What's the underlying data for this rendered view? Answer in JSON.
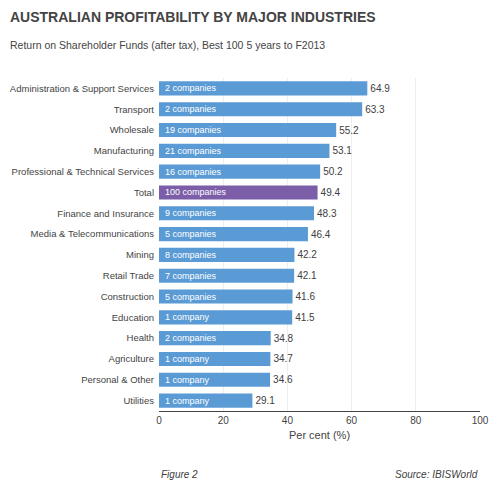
{
  "chart_data": {
    "type": "bar",
    "orientation": "horizontal",
    "title": "AUSTRALIAN PROFITABILITY BY MAJOR INDUSTRIES",
    "subtitle": "Return on Shareholder Funds (after tax), Best 100 5 years to F2013",
    "xlabel": "Per cent (%)",
    "annotations": [
      "Figure 2",
      "Source: IBISWorld"
    ],
    "categories": [
      "Administration & Support Services",
      "Transport",
      "Wholesale",
      "Manufacturing",
      "Professional & Technical Services",
      "Total",
      "Finance and Insurance",
      "Media & Telecommunications",
      "Mining",
      "Retail Trade",
      "Construction",
      "Education",
      "Health",
      "Agriculture",
      "Personal & Other",
      "Utilities"
    ],
    "values": [
      64.9,
      63.3,
      55.2,
      53.1,
      50.2,
      49.4,
      48.3,
      46.4,
      42.2,
      42.1,
      41.6,
      41.5,
      34.8,
      34.7,
      34.6,
      29.1
    ],
    "bar_labels": [
      "2 companies",
      "2 companies",
      "19 companies",
      "21 companies",
      "16 companies",
      "100 companies",
      "9 companies",
      "5 companies",
      "8 companies",
      "7 companies",
      "5 companies",
      "1 company",
      "2 companies",
      "1 company",
      "1 company",
      "1 company"
    ],
    "colors": [
      "#5B9BD5",
      "#5B9BD5",
      "#5B9BD5",
      "#5B9BD5",
      "#5B9BD5",
      "#7B5EA7",
      "#5B9BD5",
      "#5B9BD5",
      "#5B9BD5",
      "#5B9BD5",
      "#5B9BD5",
      "#5B9BD5",
      "#5B9BD5",
      "#5B9BD5",
      "#5B9BD5",
      "#5B9BD5"
    ],
    "xlim": [
      0,
      100
    ],
    "xticks": [
      0,
      20,
      40,
      60,
      80,
      100
    ],
    "grid": true,
    "data_labels": true
  }
}
